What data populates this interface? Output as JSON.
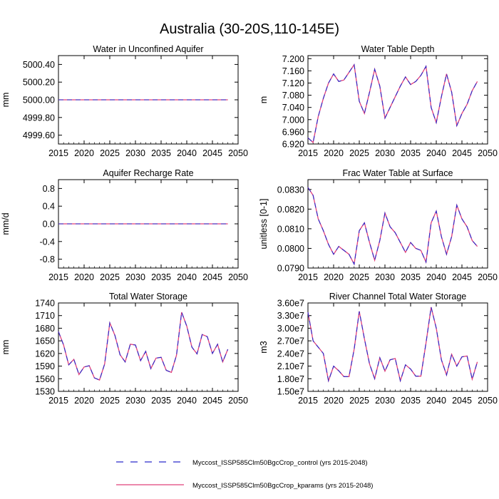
{
  "figure": {
    "title": "Australia (30-20S,110-145E)"
  },
  "legend": {
    "entries": [
      {
        "label": "Myccost_ISSP585Clm50BgcCrop_control (yrs 2015-2048)",
        "color": "#2a2acc",
        "style": "dashed"
      },
      {
        "label": "Myccost_ISSP585Clm50BgcCrop_kparams (yrs 2015-2048)",
        "color": "#e0407a",
        "style": "solid"
      }
    ]
  },
  "chart_data": [
    {
      "type": "line",
      "title": "Water in Unconfined Aquifer",
      "xlabel": "",
      "ylabel": "mm",
      "xlim": [
        2015,
        2050
      ],
      "ylim": [
        4999.5,
        5000.5
      ],
      "xticks": [
        "2015",
        "2020",
        "2025",
        "2030",
        "2035",
        "2040",
        "2045",
        "2050"
      ],
      "yticks": [
        {
          "v": 4999.6,
          "label": "4999.60"
        },
        {
          "v": 4999.8,
          "label": "4999.80"
        },
        {
          "v": 5000.0,
          "label": "5000.00"
        },
        {
          "v": 5000.2,
          "label": "5000.20"
        },
        {
          "v": 5000.4,
          "label": "5000.40"
        }
      ],
      "x": [
        2015,
        2016,
        2017,
        2018,
        2019,
        2020,
        2021,
        2022,
        2023,
        2024,
        2025,
        2026,
        2027,
        2028,
        2029,
        2030,
        2031,
        2032,
        2033,
        2034,
        2035,
        2036,
        2037,
        2038,
        2039,
        2040,
        2041,
        2042,
        2043,
        2044,
        2045,
        2046,
        2047,
        2048
      ],
      "series": [
        {
          "values": [
            5000,
            5000,
            5000,
            5000,
            5000,
            5000,
            5000,
            5000,
            5000,
            5000,
            5000,
            5000,
            5000,
            5000,
            5000,
            5000,
            5000,
            5000,
            5000,
            5000,
            5000,
            5000,
            5000,
            5000,
            5000,
            5000,
            5000,
            5000,
            5000,
            5000,
            5000,
            5000,
            5000,
            5000
          ]
        }
      ]
    },
    {
      "type": "line",
      "title": "Water Table Depth",
      "xlabel": "",
      "ylabel": "m",
      "xlim": [
        2015,
        2050
      ],
      "ylim": [
        6.92,
        7.21
      ],
      "xticks": [
        "2015",
        "2020",
        "2025",
        "2030",
        "2035",
        "2040",
        "2045",
        "2050"
      ],
      "yticks": [
        {
          "v": 6.92,
          "label": "6.920"
        },
        {
          "v": 6.96,
          "label": "6.960"
        },
        {
          "v": 7.0,
          "label": "7.000"
        },
        {
          "v": 7.04,
          "label": "7.040"
        },
        {
          "v": 7.08,
          "label": "7.080"
        },
        {
          "v": 7.12,
          "label": "7.120"
        },
        {
          "v": 7.16,
          "label": "7.160"
        },
        {
          "v": 7.2,
          "label": "7.200"
        }
      ],
      "x": [
        2015,
        2016,
        2017,
        2018,
        2019,
        2020,
        2021,
        2022,
        2023,
        2024,
        2025,
        2026,
        2027,
        2028,
        2029,
        2030,
        2031,
        2032,
        2033,
        2034,
        2035,
        2036,
        2037,
        2038,
        2039,
        2040,
        2041,
        2042,
        2043,
        2044,
        2045,
        2046,
        2047,
        2048
      ],
      "series": [
        {
          "values": [
            6.94,
            6.925,
            7.01,
            7.07,
            7.12,
            7.15,
            7.125,
            7.13,
            7.155,
            7.18,
            7.06,
            7.02,
            7.09,
            7.165,
            7.11,
            7.005,
            7.04,
            7.075,
            7.11,
            7.14,
            7.115,
            7.125,
            7.145,
            7.175,
            7.04,
            6.99,
            7.075,
            7.15,
            7.09,
            6.98,
            7.02,
            7.05,
            7.095,
            7.125
          ]
        }
      ]
    },
    {
      "type": "line",
      "title": "Aquifer Recharge Rate",
      "xlabel": "",
      "ylabel": "mm/d",
      "xlim": [
        2015,
        2050
      ],
      "ylim": [
        -1.0,
        1.0
      ],
      "xticks": [
        "2015",
        "2020",
        "2025",
        "2030",
        "2035",
        "2040",
        "2045",
        "2050"
      ],
      "yticks": [
        {
          "v": -0.8,
          "label": "-0.8"
        },
        {
          "v": -0.4,
          "label": "-0.4"
        },
        {
          "v": 0.0,
          "label": "0.0"
        },
        {
          "v": 0.4,
          "label": "0.4"
        },
        {
          "v": 0.8,
          "label": "0.8"
        }
      ],
      "x": [
        2015,
        2016,
        2017,
        2018,
        2019,
        2020,
        2021,
        2022,
        2023,
        2024,
        2025,
        2026,
        2027,
        2028,
        2029,
        2030,
        2031,
        2032,
        2033,
        2034,
        2035,
        2036,
        2037,
        2038,
        2039,
        2040,
        2041,
        2042,
        2043,
        2044,
        2045,
        2046,
        2047,
        2048
      ],
      "series": [
        {
          "values": [
            0,
            0,
            0,
            0,
            0,
            0,
            0,
            0,
            0,
            0,
            0,
            0,
            0,
            0,
            0,
            0,
            0,
            0,
            0,
            0,
            0,
            0,
            0,
            0,
            0,
            0,
            0,
            0,
            0,
            0,
            0,
            0,
            0,
            0
          ]
        }
      ]
    },
    {
      "type": "line",
      "title": "Frac Water Table at Surface",
      "xlabel": "",
      "ylabel": "unitless [0-1]",
      "xlim": [
        2015,
        2050
      ],
      "ylim": [
        0.079,
        0.0835
      ],
      "xticks": [
        "2015",
        "2020",
        "2025",
        "2030",
        "2035",
        "2040",
        "2045",
        "2050"
      ],
      "yticks": [
        {
          "v": 0.079,
          "label": "0.0790"
        },
        {
          "v": 0.08,
          "label": "0.0800"
        },
        {
          "v": 0.081,
          "label": "0.0810"
        },
        {
          "v": 0.082,
          "label": "0.0820"
        },
        {
          "v": 0.083,
          "label": "0.0830"
        }
      ],
      "x": [
        2015,
        2016,
        2017,
        2018,
        2019,
        2020,
        2021,
        2022,
        2023,
        2024,
        2025,
        2026,
        2027,
        2028,
        2029,
        2030,
        2031,
        2032,
        2033,
        2034,
        2035,
        2036,
        2037,
        2038,
        2039,
        2040,
        2041,
        2042,
        2043,
        2044,
        2045,
        2046,
        2047,
        2048
      ],
      "series": [
        {
          "values": [
            0.0831,
            0.0827,
            0.0815,
            0.0809,
            0.0802,
            0.0797,
            0.0801,
            0.0799,
            0.0797,
            0.0792,
            0.0809,
            0.0813,
            0.0803,
            0.0794,
            0.0804,
            0.0818,
            0.0811,
            0.0808,
            0.0803,
            0.0798,
            0.0803,
            0.08,
            0.0799,
            0.0793,
            0.0813,
            0.0819,
            0.0806,
            0.0797,
            0.0806,
            0.0822,
            0.0815,
            0.0811,
            0.0804,
            0.0801
          ]
        }
      ]
    },
    {
      "type": "line",
      "title": "Total Water Storage",
      "xlabel": "",
      "ylabel": "mm",
      "xlim": [
        2015,
        2050
      ],
      "ylim": [
        1530,
        1740
      ],
      "xticks": [
        "2015",
        "2020",
        "2025",
        "2030",
        "2035",
        "2040",
        "2045",
        "2050"
      ],
      "yticks": [
        {
          "v": 1530,
          "label": "1530"
        },
        {
          "v": 1560,
          "label": "1560"
        },
        {
          "v": 1590,
          "label": "1590"
        },
        {
          "v": 1620,
          "label": "1620"
        },
        {
          "v": 1650,
          "label": "1650"
        },
        {
          "v": 1680,
          "label": "1680"
        },
        {
          "v": 1710,
          "label": "1710"
        },
        {
          "v": 1740,
          "label": "1740"
        }
      ],
      "x": [
        2015,
        2016,
        2017,
        2018,
        2019,
        2020,
        2021,
        2022,
        2023,
        2024,
        2025,
        2026,
        2027,
        2028,
        2029,
        2030,
        2031,
        2032,
        2033,
        2034,
        2035,
        2036,
        2037,
        2038,
        2039,
        2040,
        2041,
        2042,
        2043,
        2044,
        2045,
        2046,
        2047,
        2048
      ],
      "series": [
        {
          "values": [
            1672,
            1640,
            1593,
            1606,
            1570,
            1588,
            1591,
            1562,
            1557,
            1595,
            1693,
            1663,
            1617,
            1600,
            1642,
            1640,
            1603,
            1625,
            1584,
            1609,
            1611,
            1580,
            1575,
            1616,
            1718,
            1685,
            1635,
            1619,
            1665,
            1660,
            1620,
            1642,
            1600,
            1630
          ]
        }
      ]
    },
    {
      "type": "line",
      "title": "River Channel Total Water Storage",
      "xlabel": "",
      "ylabel": "m3",
      "xlim": [
        2015,
        2050
      ],
      "ylim": [
        15000000,
        36000000
      ],
      "xticks": [
        "2015",
        "2020",
        "2025",
        "2030",
        "2035",
        "2040",
        "2045",
        "2050"
      ],
      "yticks": [
        {
          "v": 15000000,
          "label": "1.50e7"
        },
        {
          "v": 18000000,
          "label": "1.80e7"
        },
        {
          "v": 21000000,
          "label": "2.10e7"
        },
        {
          "v": 24000000,
          "label": "2.40e7"
        },
        {
          "v": 27000000,
          "label": "2.70e7"
        },
        {
          "v": 30000000,
          "label": "3.00e7"
        },
        {
          "v": 33000000,
          "label": "3.30e7"
        },
        {
          "v": 36000000,
          "label": "3.60e7"
        }
      ],
      "x": [
        2015,
        2016,
        2017,
        2018,
        2019,
        2020,
        2021,
        2022,
        2023,
        2024,
        2025,
        2026,
        2027,
        2028,
        2029,
        2030,
        2031,
        2032,
        2033,
        2034,
        2035,
        2036,
        2037,
        2038,
        2039,
        2040,
        2041,
        2042,
        2043,
        2044,
        2045,
        2046,
        2047,
        2048
      ],
      "series": [
        {
          "values": [
            33800000,
            27000000,
            25500000,
            24000000,
            17500000,
            21000000,
            19900000,
            18500000,
            18500000,
            25000000,
            34000000,
            27500000,
            21500000,
            18000000,
            23000000,
            19800000,
            22500000,
            22800000,
            17500000,
            21300000,
            20300000,
            18600000,
            18600000,
            26500000,
            35000000,
            30000000,
            22500000,
            18900000,
            23800000,
            21000000,
            23200000,
            23400000,
            17900000,
            22000000
          ]
        }
      ]
    }
  ]
}
